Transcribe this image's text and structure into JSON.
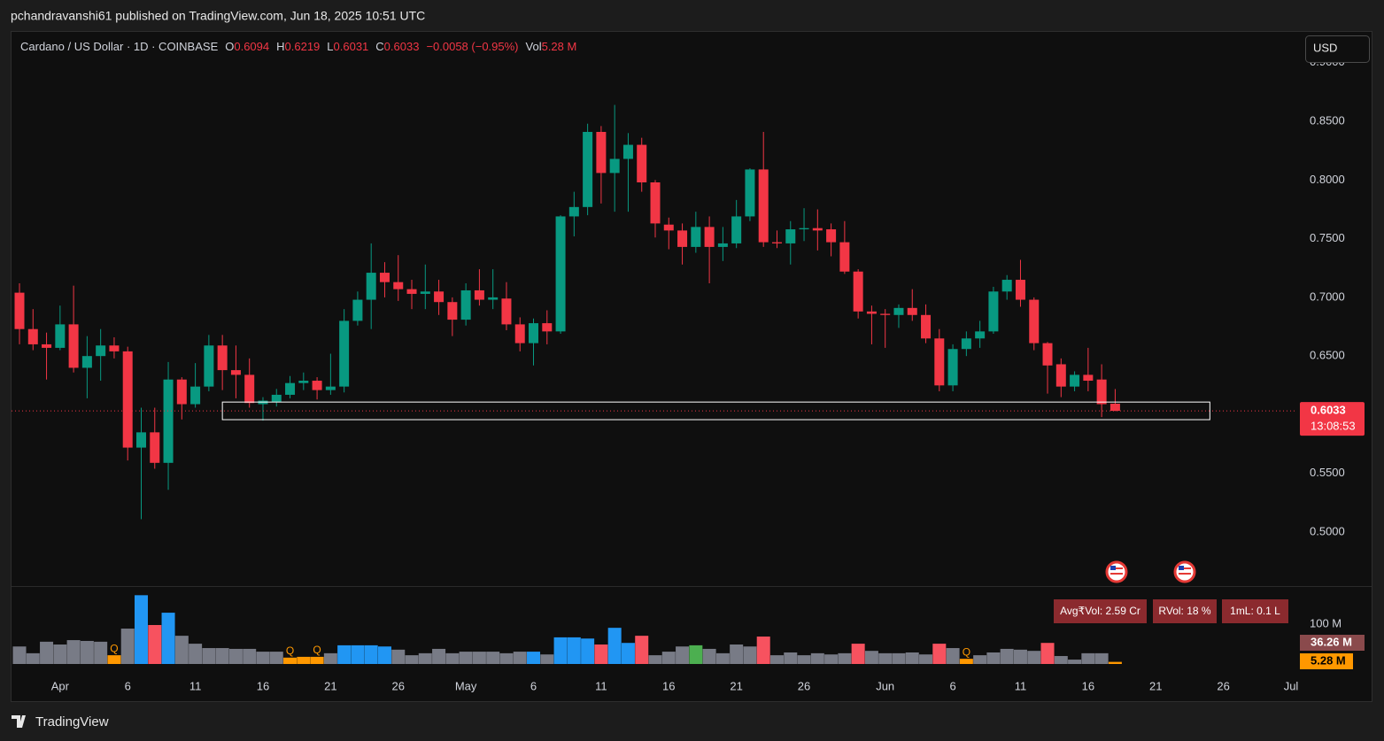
{
  "header": {
    "title": "pchandravanshi61 published on TradingView.com, Jun 18, 2025 10:51 UTC"
  },
  "footer": {
    "brand": "TradingView"
  },
  "chart_data": {
    "type": "candlestick",
    "legend": {
      "symbol": "Cardano / US Dollar · 1D · COINBASE",
      "open_label": "O",
      "high_label": "H",
      "low_label": "L",
      "close_label": "C",
      "change": "−0.0058 (−0.95%)",
      "volume_label": "Vol"
    },
    "currency_button": "USD",
    "countdown": "13:08:53",
    "up_color": "#089981",
    "down_color": "#f23645",
    "x": [
      "2025-03-29",
      "2025-03-30",
      "2025-03-31",
      "2025-04-01",
      "2025-04-02",
      "2025-04-03",
      "2025-04-04",
      "2025-04-05",
      "2025-04-06",
      "2025-04-07",
      "2025-04-08",
      "2025-04-09",
      "2025-04-10",
      "2025-04-11",
      "2025-04-12",
      "2025-04-13",
      "2025-04-14",
      "2025-04-15",
      "2025-04-16",
      "2025-04-17",
      "2025-04-18",
      "2025-04-19",
      "2025-04-20",
      "2025-04-21",
      "2025-04-22",
      "2025-04-23",
      "2025-04-24",
      "2025-04-25",
      "2025-04-26",
      "2025-04-27",
      "2025-04-28",
      "2025-04-29",
      "2025-04-30",
      "2025-05-01",
      "2025-05-02",
      "2025-05-03",
      "2025-05-04",
      "2025-05-05",
      "2025-05-06",
      "2025-05-07",
      "2025-05-08",
      "2025-05-09",
      "2025-05-10",
      "2025-05-11",
      "2025-05-12",
      "2025-05-13",
      "2025-05-14",
      "2025-05-15",
      "2025-05-16",
      "2025-05-17",
      "2025-05-18",
      "2025-05-19",
      "2025-05-20",
      "2025-05-21",
      "2025-05-22",
      "2025-05-23",
      "2025-05-24",
      "2025-05-25",
      "2025-05-26",
      "2025-05-27",
      "2025-05-28",
      "2025-05-29",
      "2025-05-30",
      "2025-05-31",
      "2025-06-01",
      "2025-06-02",
      "2025-06-03",
      "2025-06-04",
      "2025-06-05",
      "2025-06-06",
      "2025-06-07",
      "2025-06-08",
      "2025-06-09",
      "2025-06-10",
      "2025-06-11",
      "2025-06-12",
      "2025-06-13",
      "2025-06-14",
      "2025-06-15",
      "2025-06-16",
      "2025-06-17",
      "2025-06-18"
    ],
    "open": [
      0.704,
      0.673,
      0.66,
      0.657,
      0.677,
      0.64,
      0.65,
      0.659,
      0.654,
      0.572,
      0.585,
      0.559,
      0.63,
      0.609,
      0.624,
      0.659,
      0.638,
      0.634,
      0.609,
      0.611,
      0.617,
      0.627,
      0.629,
      0.621,
      0.624,
      0.68,
      0.698,
      0.721,
      0.713,
      0.707,
      0.703,
      0.705,
      0.696,
      0.681,
      0.706,
      0.698,
      0.699,
      0.677,
      0.661,
      0.678,
      0.671,
      0.769,
      0.777,
      0.841,
      0.806,
      0.818,
      0.83,
      0.798,
      0.762,
      0.757,
      0.743,
      0.76,
      0.743,
      0.746,
      0.769,
      0.809,
      0.747,
      0.746,
      0.758,
      0.759,
      0.758,
      0.747,
      0.722,
      0.688,
      0.686,
      0.685,
      0.691,
      0.685,
      0.665,
      0.625,
      0.656,
      0.665,
      0.671,
      0.705,
      0.715,
      0.698,
      0.661,
      0.643,
      0.624,
      0.634,
      0.63,
      0.6094
    ],
    "high": [
      0.712,
      0.69,
      0.67,
      0.693,
      0.71,
      0.667,
      0.673,
      0.666,
      0.658,
      0.606,
      0.606,
      0.645,
      0.632,
      0.644,
      0.668,
      0.668,
      0.659,
      0.648,
      0.615,
      0.622,
      0.633,
      0.636,
      0.632,
      0.652,
      0.69,
      0.705,
      0.746,
      0.73,
      0.736,
      0.715,
      0.728,
      0.715,
      0.7,
      0.712,
      0.724,
      0.724,
      0.713,
      0.683,
      0.682,
      0.689,
      0.77,
      0.79,
      0.848,
      0.846,
      0.864,
      0.84,
      0.836,
      0.8,
      0.768,
      0.763,
      0.773,
      0.769,
      0.76,
      0.783,
      0.81,
      0.841,
      0.757,
      0.765,
      0.776,
      0.775,
      0.763,
      0.765,
      0.724,
      0.693,
      0.69,
      0.694,
      0.707,
      0.694,
      0.673,
      0.66,
      0.671,
      0.68,
      0.709,
      0.719,
      0.732,
      0.7,
      0.662,
      0.648,
      0.637,
      0.657,
      0.643,
      0.6219
    ],
    "low": [
      0.66,
      0.655,
      0.63,
      0.655,
      0.636,
      0.614,
      0.629,
      0.648,
      0.561,
      0.511,
      0.554,
      0.536,
      0.596,
      0.606,
      0.62,
      0.621,
      0.614,
      0.606,
      0.595,
      0.607,
      0.614,
      0.621,
      0.613,
      0.617,
      0.619,
      0.676,
      0.673,
      0.7,
      0.697,
      0.69,
      0.69,
      0.685,
      0.667,
      0.676,
      0.693,
      0.69,
      0.672,
      0.654,
      0.642,
      0.66,
      0.669,
      0.752,
      0.77,
      0.78,
      0.773,
      0.773,
      0.79,
      0.751,
      0.741,
      0.728,
      0.738,
      0.712,
      0.731,
      0.742,
      0.765,
      0.743,
      0.742,
      0.728,
      0.748,
      0.74,
      0.735,
      0.72,
      0.682,
      0.66,
      0.657,
      0.674,
      0.68,
      0.661,
      0.62,
      0.62,
      0.65,
      0.657,
      0.669,
      0.698,
      0.692,
      0.655,
      0.618,
      0.615,
      0.62,
      0.62,
      0.598,
      0.6031
    ],
    "close": [
      0.673,
      0.66,
      0.657,
      0.677,
      0.64,
      0.65,
      0.659,
      0.654,
      0.572,
      0.585,
      0.559,
      0.63,
      0.609,
      0.624,
      0.659,
      0.638,
      0.634,
      0.61,
      0.612,
      0.617,
      0.627,
      0.629,
      0.621,
      0.624,
      0.68,
      0.698,
      0.721,
      0.713,
      0.707,
      0.703,
      0.705,
      0.696,
      0.681,
      0.706,
      0.698,
      0.7,
      0.677,
      0.661,
      0.678,
      0.671,
      0.769,
      0.777,
      0.841,
      0.806,
      0.818,
      0.83,
      0.798,
      0.763,
      0.757,
      0.743,
      0.76,
      0.743,
      0.746,
      0.769,
      0.809,
      0.747,
      0.746,
      0.758,
      0.759,
      0.757,
      0.747,
      0.722,
      0.688,
      0.686,
      0.685,
      0.691,
      0.685,
      0.665,
      0.625,
      0.656,
      0.665,
      0.671,
      0.705,
      0.715,
      0.698,
      0.661,
      0.642,
      0.624,
      0.634,
      0.629,
      0.609,
      0.6033
    ],
    "xlim": [
      "2025-03-29",
      "2025-07-01"
    ],
    "xticks": [
      {
        "value": "2025-04-01",
        "label": "Apr"
      },
      {
        "value": "2025-04-06",
        "label": "6"
      },
      {
        "value": "2025-04-11",
        "label": "11"
      },
      {
        "value": "2025-04-16",
        "label": "16"
      },
      {
        "value": "2025-04-21",
        "label": "21"
      },
      {
        "value": "2025-04-26",
        "label": "26"
      },
      {
        "value": "2025-05-01",
        "label": "May"
      },
      {
        "value": "2025-05-06",
        "label": "6"
      },
      {
        "value": "2025-05-11",
        "label": "11"
      },
      {
        "value": "2025-05-16",
        "label": "16"
      },
      {
        "value": "2025-05-21",
        "label": "21"
      },
      {
        "value": "2025-05-26",
        "label": "26"
      },
      {
        "value": "2025-06-01",
        "label": "Jun"
      },
      {
        "value": "2025-06-06",
        "label": "6"
      },
      {
        "value": "2025-06-11",
        "label": "11"
      },
      {
        "value": "2025-06-16",
        "label": "16"
      },
      {
        "value": "2025-06-21",
        "label": "21"
      },
      {
        "value": "2025-06-26",
        "label": "26"
      },
      {
        "value": "2025-07-01",
        "label": "Jul"
      }
    ],
    "ylim": [
      0.454,
      0.927
    ],
    "yticks": [
      {
        "value": 0.5,
        "label": "0.5000"
      },
      {
        "value": 0.55,
        "label": "0.5500"
      },
      {
        "value": 0.6,
        "label": "0.6000"
      },
      {
        "value": 0.65,
        "label": "0.6500"
      },
      {
        "value": 0.7,
        "label": "0.7000"
      },
      {
        "value": 0.75,
        "label": "0.7500"
      },
      {
        "value": 0.8,
        "label": "0.8000"
      },
      {
        "value": 0.85,
        "label": "0.8500"
      },
      {
        "value": 0.9,
        "label": "0.9000"
      }
    ],
    "grid": false,
    "annotation_box": {
      "x": [
        "2025-04-13",
        "2025-06-25"
      ],
      "y": [
        0.5958,
        0.6108
      ],
      "color": "#ffffff"
    },
    "volume": {
      "values": [
        44,
        27,
        56,
        49,
        60,
        58,
        56,
        22,
        89,
        173,
        98,
        129,
        71,
        51,
        40,
        40,
        38,
        38,
        31,
        31,
        16,
        18,
        18,
        27,
        47,
        47,
        47,
        44,
        36,
        22,
        27,
        38,
        27,
        31,
        31,
        31,
        27,
        31,
        31,
        24,
        67,
        67,
        64,
        49,
        91,
        53,
        71,
        22,
        31,
        44,
        47,
        38,
        27,
        49,
        44,
        69,
        22,
        29,
        22,
        27,
        24,
        27,
        51,
        33,
        27,
        27,
        29,
        24,
        51,
        40,
        13,
        22,
        29,
        38,
        36,
        33,
        53,
        20,
        11,
        27,
        27,
        5.28
      ],
      "colors": [
        "#787b86",
        "#787b86",
        "#787b86",
        "#787b86",
        "#787b86",
        "#787b86",
        "#787b86",
        "#ff9800",
        "#787b86",
        "#2196f3",
        "#f7525f",
        "#2196f3",
        "#787b86",
        "#787b86",
        "#787b86",
        "#787b86",
        "#787b86",
        "#787b86",
        "#787b86",
        "#787b86",
        "#ff9800",
        "#ff9800",
        "#ff9800",
        "#787b86",
        "#2196f3",
        "#2196f3",
        "#2196f3",
        "#2196f3",
        "#787b86",
        "#787b86",
        "#787b86",
        "#787b86",
        "#787b86",
        "#787b86",
        "#787b86",
        "#787b86",
        "#787b86",
        "#787b86",
        "#2196f3",
        "#787b86",
        "#2196f3",
        "#2196f3",
        "#2196f3",
        "#f7525f",
        "#2196f3",
        "#2196f3",
        "#f7525f",
        "#787b86",
        "#787b86",
        "#787b86",
        "#4caf50",
        "#787b86",
        "#787b86",
        "#787b86",
        "#787b86",
        "#f7525f",
        "#787b86",
        "#787b86",
        "#787b86",
        "#787b86",
        "#787b86",
        "#787b86",
        "#f7525f",
        "#787b86",
        "#787b86",
        "#787b86",
        "#787b86",
        "#787b86",
        "#f7525f",
        "#787b86",
        "#ff9800",
        "#787b86",
        "#787b86",
        "#787b86",
        "#787b86",
        "#787b86",
        "#f7525f",
        "#787b86",
        "#787b86",
        "#787b86",
        "#787b86",
        "#ff9800"
      ],
      "labels": [
        null,
        null,
        null,
        null,
        null,
        null,
        null,
        "Q",
        null,
        null,
        null,
        null,
        null,
        null,
        null,
        null,
        null,
        null,
        null,
        null,
        "Q",
        null,
        "Q",
        null,
        null,
        null,
        null,
        null,
        null,
        null,
        null,
        null,
        null,
        null,
        null,
        null,
        null,
        null,
        null,
        null,
        null,
        null,
        null,
        null,
        null,
        null,
        null,
        null,
        null,
        null,
        null,
        null,
        null,
        null,
        null,
        null,
        null,
        null,
        null,
        null,
        null,
        null,
        null,
        null,
        null,
        null,
        null,
        null,
        null,
        null,
        "Q",
        null,
        null,
        null,
        null,
        null,
        null,
        null,
        null,
        null,
        null,
        null
      ],
      "last_label": "5.28 M",
      "ylim": [
        0,
        196
      ],
      "yticks": [
        {
          "value": 100,
          "label": "100 M"
        }
      ],
      "ma": {
        "value": 36.26,
        "label": "36.26 M"
      },
      "indicators": [
        "Avg₹Vol: 2.59 Cr",
        "RVol: 18 %",
        "1mL: 0.1 L"
      ]
    }
  }
}
